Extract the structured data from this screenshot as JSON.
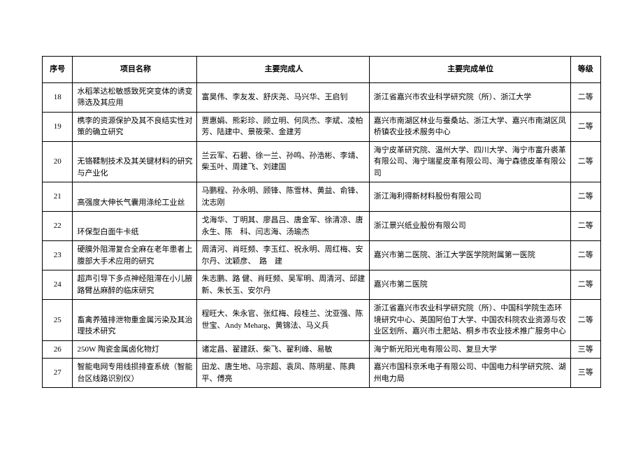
{
  "table": {
    "headers": {
      "seq": "序号",
      "project": "项目名称",
      "people": "主要完成人",
      "unit": "主要完成单位",
      "grade": "等级"
    },
    "rows": [
      {
        "seq": "18",
        "project": "水稻苯达松敏感致死突变体的诱变筛选及其应用",
        "people": "富昊伟、李友发、舒庆尧、马兴华、王启钊",
        "unit": "浙江省嘉兴市农业科学研究院（所）、浙江大学",
        "grade": "二等"
      },
      {
        "seq": "19",
        "project": "槜李的资源保护及其不良结实性对策的确立研究",
        "people": "贾惠娟、熊彩珍、顾立明、何凤杰、李斌、凌柏芳、陆建中、景筱荣、金建芳",
        "unit": "嘉兴市南湖区林业与蚕桑站、浙江大学、嘉兴市南湖区凤桥镇农业技术服务中心",
        "grade": "二等"
      },
      {
        "seq": "20",
        "project": "无铬鞣制技术及其关键材料的研究与产业化",
        "people": "兰云军、石碧、徐一兰、孙鸣、孙浩彬、李靖、柴玉叶、周建飞、刘建国",
        "unit": "海宁皮革研究院、温州大学、四川大学、海宁市富升裘革有限公司、海宁瑞星皮革有限公司、海宁森德皮革有限公司",
        "grade": "二等"
      },
      {
        "seq": "21",
        "project": "高强度大伸长气囊用涤纶工业丝",
        "people": "马鹏程、孙永明、顾锋、陈雪林、黄益、俞锋、沈志刚",
        "unit": "浙江海利得新材料股份有限公司",
        "grade": "二等"
      },
      {
        "seq": "22",
        "project": "环保型白面牛卡纸",
        "people": "戈海华、丁明其、廖昌吕、唐金军、徐清凉、唐永生、陈　科、闫志海、汤瑜杰",
        "unit": "浙江景兴纸业股份有限公司",
        "grade": "二等"
      },
      {
        "seq": "23",
        "project": "硬膜外阻滞复合全麻在老年患者上腹部大手术应用的研究",
        "people": "周清河、肖旺频、李玉红、祝永明、周红梅、安尔丹、沈颖彦、　路　建",
        "unit": "嘉兴市第二医院、浙江大学医学院附属第一医院",
        "grade": "二等"
      },
      {
        "seq": "24",
        "project": "超声引导下多点神经阻滞在小儿腋路臂丛麻醉的临床研究",
        "people": "朱志鹏、路 健、肖旺频、吴军明、周清河、邱建新、朱长玉、安尔丹",
        "unit": "嘉兴市第二医院",
        "grade": "二等"
      },
      {
        "seq": "25",
        "project": "畜禽养殖排泄物重金属污染及其治理技术研究",
        "people": "程旺大、朱永官、张红梅、段桂兰、沈亚强、陈世宝、Andy Meharg、黄锦法、马义兵",
        "unit": "浙江省嘉兴市农业科学研究院（所）、中国科学院生态环境研究中心、英国阿伯丁大学、中国农科院农业资源与农业区划所、嘉兴市土肥站、桐乡市农业技术推广服务中心",
        "grade": "二等"
      },
      {
        "seq": "26",
        "project": "250W 陶瓷金属卤化物灯",
        "people": "诸定昌、翟建跃、柴飞、翟利峰、易敏",
        "unit": "海宁新光阳光电有限公司、复旦大学",
        "grade": "三等"
      },
      {
        "seq": "27",
        "project": "智能电网专用线损排查系统（智能台区线路识别仪）",
        "people": "田龙、唐生地、马宗超、袁凤、陈明星、陈典平、傅亮",
        "unit": "嘉兴市国科京禾电子有限公司、中国电力科学研究院、湖州电力局",
        "grade": "三等"
      }
    ]
  }
}
